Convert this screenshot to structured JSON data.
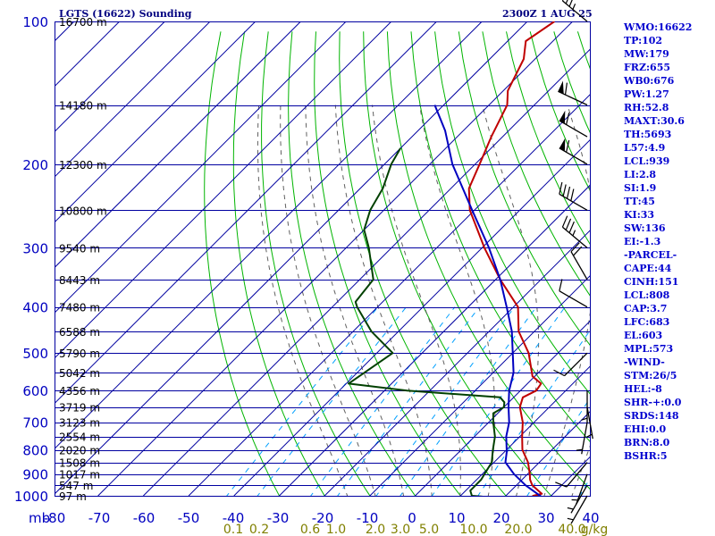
{
  "header": {
    "station": "LGTS (16622) Sounding",
    "datetime": "2300Z  1 AUG 25"
  },
  "indices": [
    "WMO:16622",
    "TP:102",
    "MW:179",
    "FRZ:655",
    "WB0:676",
    "PW:1.27",
    "RH:52.8",
    "MAXT:30.6",
    "TH:5693",
    "L57:4.9",
    "LCL:939",
    "LI:2.8",
    "SI:1.9",
    "TT:45",
    "KI:33",
    "SW:136",
    "EI:-1.3",
    "-PARCEL-",
    "CAPE:44",
    "CINH:151",
    "LCL:808",
    "CAP:3.7",
    "LFC:683",
    "EL:603",
    "MPL:573",
    "-WIND-",
    "STM:26/5",
    "HEL:-8",
    "SHR-+:0.0",
    "SRDS:148",
    "EHI:0.0",
    "BRN:8.0",
    "BSHR:5"
  ],
  "colors": {
    "grid": "#0000a0",
    "isotherm": "#0000a0",
    "dry_adiabat": "#00b400",
    "moist_adiabat": "#606060",
    "mixing_ratio": "#00a0ff",
    "temperature": "#c00000",
    "dewpoint": "#004000",
    "parcel": "#0000c0",
    "axis_labels": "#0000c0",
    "mixing_labels": "#808000"
  },
  "chart_data": {
    "type": "line",
    "title": "LGTS (16622) Sounding",
    "xlabel": "",
    "ylabel": "mb",
    "x_axis_units": "°C",
    "xlim": [
      -80,
      40
    ],
    "ylim": [
      1000,
      100
    ],
    "y_scale": "log",
    "grid": true,
    "skew": true,
    "x_tick_labels": [
      "-80",
      "-70",
      "-60",
      "-50",
      "-40",
      "-30",
      "-20",
      "-10",
      "0",
      "10",
      "20",
      "30",
      "40"
    ],
    "y_tick_labels": [
      "100",
      "200",
      "300",
      "400",
      "500",
      "600",
      "700",
      "800",
      "900",
      "1000"
    ],
    "mixing_ratio_labels": [
      "0.1",
      "0.2",
      "0.6",
      "1.0",
      "2.0",
      "3.0",
      "5.0",
      "10.0",
      "20.0",
      "40.0",
      "g/kg"
    ],
    "height_labels": [
      {
        "p": 100,
        "label": "16700 m"
      },
      {
        "p": 150,
        "label": "14180 m"
      },
      {
        "p": 200,
        "label": "12300 m"
      },
      {
        "p": 250,
        "label": "10800 m"
      },
      {
        "p": 300,
        "label": "9540 m"
      },
      {
        "p": 350,
        "label": "8443 m"
      },
      {
        "p": 400,
        "label": "7480 m"
      },
      {
        "p": 450,
        "label": "6588 m"
      },
      {
        "p": 500,
        "label": "5790 m"
      },
      {
        "p": 550,
        "label": "5042 m"
      },
      {
        "p": 600,
        "label": "4356 m"
      },
      {
        "p": 650,
        "label": "3719 m"
      },
      {
        "p": 700,
        "label": "3123 m"
      },
      {
        "p": 750,
        "label": "2554 m"
      },
      {
        "p": 800,
        "label": "2020 m"
      },
      {
        "p": 850,
        "label": "1508 m"
      },
      {
        "p": 900,
        "label": "1017 m"
      },
      {
        "p": 950,
        "label": "547 m"
      },
      {
        "p": 1000,
        "label": "97 m"
      }
    ],
    "series": [
      {
        "name": "temperature",
        "points": [
          [
            1004,
            28.0
          ],
          [
            1000,
            26.0
          ],
          [
            990,
            27.5
          ],
          [
            975,
            26.0
          ],
          [
            950,
            23.5
          ],
          [
            925,
            21.8
          ],
          [
            900,
            20.5
          ],
          [
            850,
            17.5
          ],
          [
            800,
            13.5
          ],
          [
            750,
            10.5
          ],
          [
            700,
            7.5
          ],
          [
            650,
            3.5
          ],
          [
            620,
            2.0
          ],
          [
            600,
            3.5
          ],
          [
            580,
            3.0
          ],
          [
            560,
            -0.5
          ],
          [
            500,
            -6.5
          ],
          [
            450,
            -13.5
          ],
          [
            400,
            -19.0
          ],
          [
            350,
            -29.0
          ],
          [
            300,
            -39.5
          ],
          [
            250,
            -51.0
          ],
          [
            225,
            -56.0
          ],
          [
            200,
            -59.0
          ],
          [
            175,
            -62.5
          ],
          [
            150,
            -66.0
          ],
          [
            140,
            -69.0
          ],
          [
            120,
            -72.5
          ],
          [
            110,
            -76.0
          ],
          [
            100,
            -74.0
          ]
        ]
      },
      {
        "name": "dewpoint",
        "points": [
          [
            1004,
            15.0
          ],
          [
            1000,
            12.5
          ],
          [
            975,
            11.0
          ],
          [
            950,
            11.0
          ],
          [
            925,
            11.0
          ],
          [
            900,
            10.5
          ],
          [
            850,
            9.5
          ],
          [
            800,
            7.0
          ],
          [
            750,
            4.5
          ],
          [
            700,
            1.0
          ],
          [
            670,
            -1.0
          ],
          [
            650,
            0.0
          ],
          [
            635,
            -1.0
          ],
          [
            620,
            -3.0
          ],
          [
            600,
            -25.0
          ],
          [
            580,
            -39.5
          ],
          [
            500,
            -36.5
          ],
          [
            450,
            -46.0
          ],
          [
            400,
            -54.5
          ],
          [
            390,
            -56.0
          ],
          [
            350,
            -57.0
          ],
          [
            300,
            -65.0
          ],
          [
            275,
            -70.0
          ],
          [
            250,
            -73.0
          ],
          [
            225,
            -75.0
          ],
          [
            200,
            -78.5
          ],
          [
            185,
            -80.0
          ]
        ]
      },
      {
        "name": "parcel",
        "points": [
          [
            1004,
            28.0
          ],
          [
            950,
            22.0
          ],
          [
            900,
            17.0
          ],
          [
            850,
            12.5
          ],
          [
            808,
            10.5
          ],
          [
            750,
            7.0
          ],
          [
            700,
            4.5
          ],
          [
            650,
            1.0
          ],
          [
            600,
            -2.5
          ],
          [
            550,
            -5.5
          ],
          [
            500,
            -10.0
          ],
          [
            450,
            -15.0
          ],
          [
            400,
            -21.5
          ],
          [
            350,
            -29.0
          ],
          [
            300,
            -38.5
          ],
          [
            250,
            -50.5
          ],
          [
            200,
            -65.0
          ],
          [
            170,
            -74.0
          ],
          [
            150,
            -82.0
          ]
        ]
      }
    ],
    "wind_barbs": [
      {
        "p": 100,
        "dir": 310,
        "kt": 35
      },
      {
        "p": 150,
        "dir": 295,
        "kt": 60
      },
      {
        "p": 175,
        "dir": 300,
        "kt": 60
      },
      {
        "p": 200,
        "dir": 300,
        "kt": 60
      },
      {
        "p": 250,
        "dir": 300,
        "kt": 40
      },
      {
        "p": 300,
        "dir": 310,
        "kt": 35
      },
      {
        "p": 350,
        "dir": 330,
        "kt": 20
      },
      {
        "p": 400,
        "dir": 300,
        "kt": 10
      },
      {
        "p": 500,
        "dir": 225,
        "kt": 10
      },
      {
        "p": 600,
        "dir": 180,
        "kt": 5
      },
      {
        "p": 650,
        "dir": 170,
        "kt": 5
      },
      {
        "p": 700,
        "dir": 190,
        "kt": 5
      },
      {
        "p": 850,
        "dir": 220,
        "kt": 10
      },
      {
        "p": 900,
        "dir": 200,
        "kt": 5
      },
      {
        "p": 950,
        "dir": 210,
        "kt": 5
      },
      {
        "p": 1000,
        "dir": 210,
        "kt": 5
      }
    ]
  }
}
